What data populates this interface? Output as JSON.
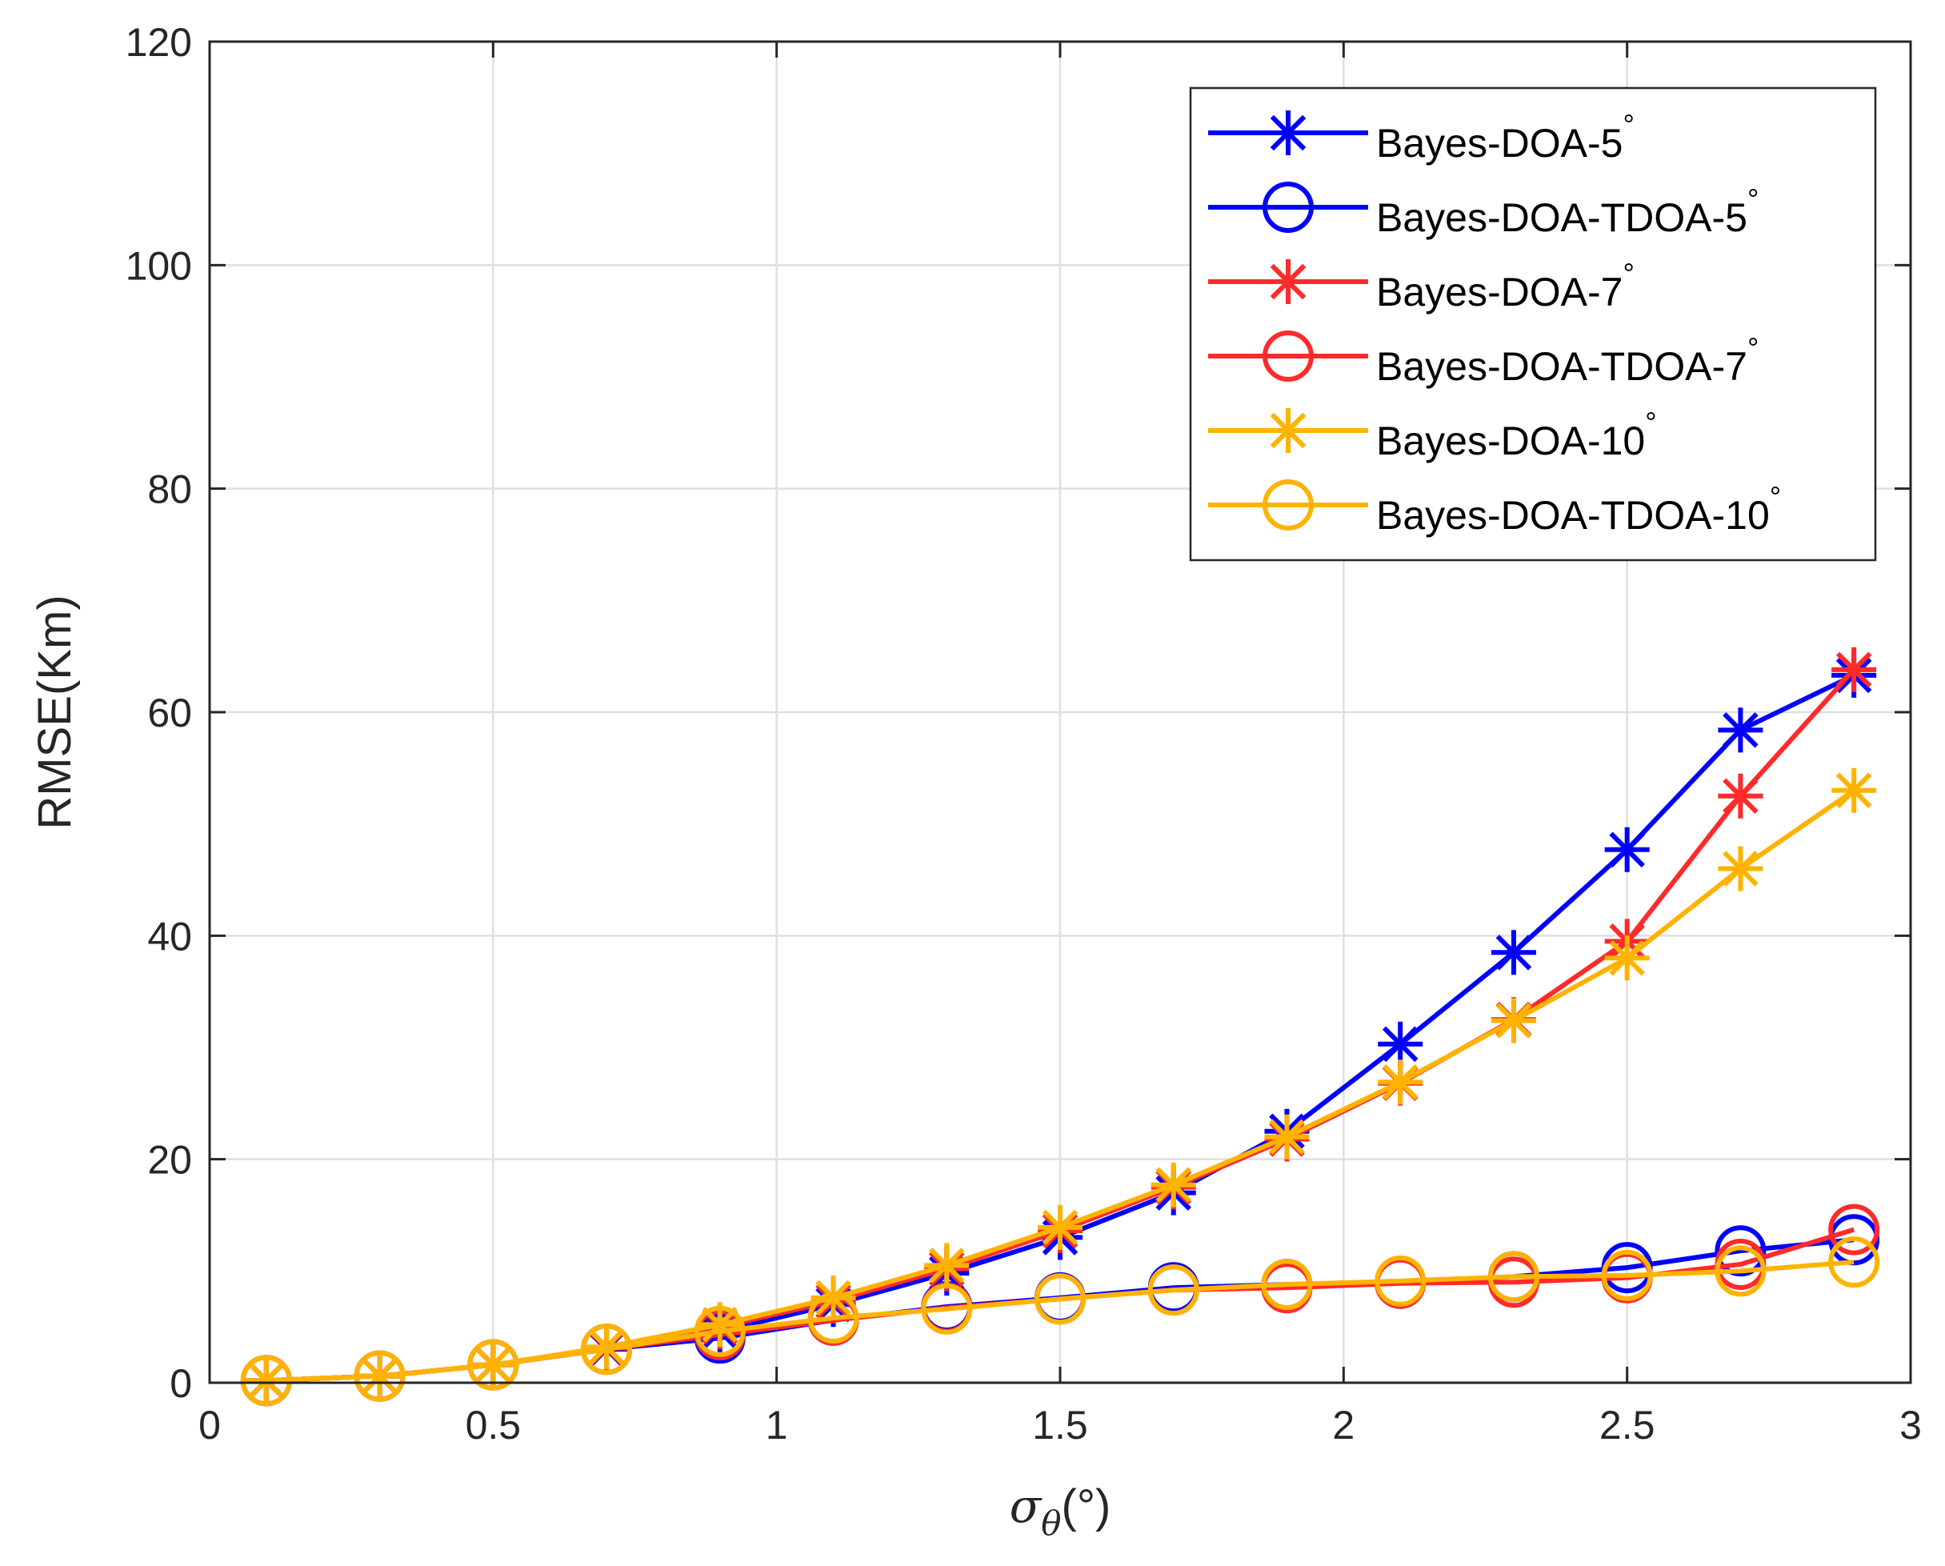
{
  "chart_data": {
    "type": "line",
    "title": "",
    "xlabel": "σθ(°)",
    "xlabel_symbol": "σ",
    "xlabel_subscript": "θ",
    "xlabel_unit": "(°)",
    "ylabel": "RMSE(Km)",
    "xlim": [
      0,
      3
    ],
    "ylim": [
      0,
      120
    ],
    "xticks": [
      0,
      0.5,
      1,
      1.5,
      2,
      2.5,
      3
    ],
    "xtick_labels": [
      "0",
      "0.5",
      "1",
      "1.5",
      "2",
      "2.5",
      "3"
    ],
    "yticks": [
      0,
      20,
      40,
      60,
      80,
      100,
      120
    ],
    "ytick_labels": [
      "0",
      "20",
      "40",
      "60",
      "80",
      "100",
      "120"
    ],
    "grid": true,
    "legend_position": "top-right",
    "x": [
      0.1,
      0.3,
      0.5,
      0.7,
      0.9,
      1.1,
      1.3,
      1.5,
      1.7,
      1.9,
      2.1,
      2.3,
      2.5,
      2.7,
      2.9
    ],
    "series": [
      {
        "name": "Bayes-DOA-5",
        "legend_base": "Bayes-DOA-5",
        "legend_sup": "°",
        "color": "#0000ff",
        "marker": "asterisk",
        "values": [
          0.2,
          0.6,
          1.6,
          3.0,
          4.6,
          7.0,
          9.8,
          13.0,
          17.0,
          22.5,
          30.3,
          38.5,
          47.7,
          58.4,
          63.3
        ]
      },
      {
        "name": "Bayes-DOA-TDOA-5",
        "legend_base": "Bayes-DOA-TDOA-5",
        "legend_sup": "°",
        "color": "#0000ff",
        "marker": "circle",
        "values": [
          0.2,
          0.6,
          1.6,
          3.0,
          4.0,
          5.6,
          6.8,
          7.6,
          8.5,
          8.8,
          9.0,
          9.5,
          10.3,
          11.8,
          12.8
        ]
      },
      {
        "name": "Bayes-DOA-7",
        "legend_base": "Bayes-DOA-7",
        "legend_sup": "°",
        "color": "#ff2a2a",
        "marker": "asterisk",
        "values": [
          0.2,
          0.6,
          1.6,
          3.1,
          5.0,
          7.3,
          10.2,
          13.6,
          17.5,
          21.8,
          26.8,
          32.5,
          39.5,
          52.5,
          63.8
        ]
      },
      {
        "name": "Bayes-DOA-TDOA-7",
        "legend_base": "Bayes-DOA-TDOA-7",
        "legend_sup": "°",
        "color": "#ff2a2a",
        "marker": "circle",
        "values": [
          0.2,
          0.6,
          1.6,
          3.0,
          4.3,
          5.6,
          6.7,
          7.5,
          8.3,
          8.5,
          8.9,
          9.0,
          9.4,
          10.6,
          13.7
        ]
      },
      {
        "name": "Bayes-DOA-10",
        "legend_base": "Bayes-DOA-10",
        "legend_sup": "°",
        "color": "#ffb300",
        "marker": "asterisk",
        "values": [
          0.2,
          0.6,
          1.6,
          3.2,
          5.2,
          7.6,
          10.5,
          13.9,
          17.7,
          22.0,
          26.9,
          32.4,
          38.0,
          46.0,
          53.0
        ]
      },
      {
        "name": "Bayes-DOA-TDOA-10",
        "legend_base": "Bayes-DOA-TDOA-10",
        "legend_sup": "°",
        "color": "#ffb300",
        "marker": "circle",
        "values": [
          0.2,
          0.6,
          1.6,
          3.0,
          4.6,
          5.8,
          6.6,
          7.5,
          8.3,
          8.8,
          9.1,
          9.5,
          9.6,
          10.0,
          10.8
        ]
      }
    ]
  }
}
